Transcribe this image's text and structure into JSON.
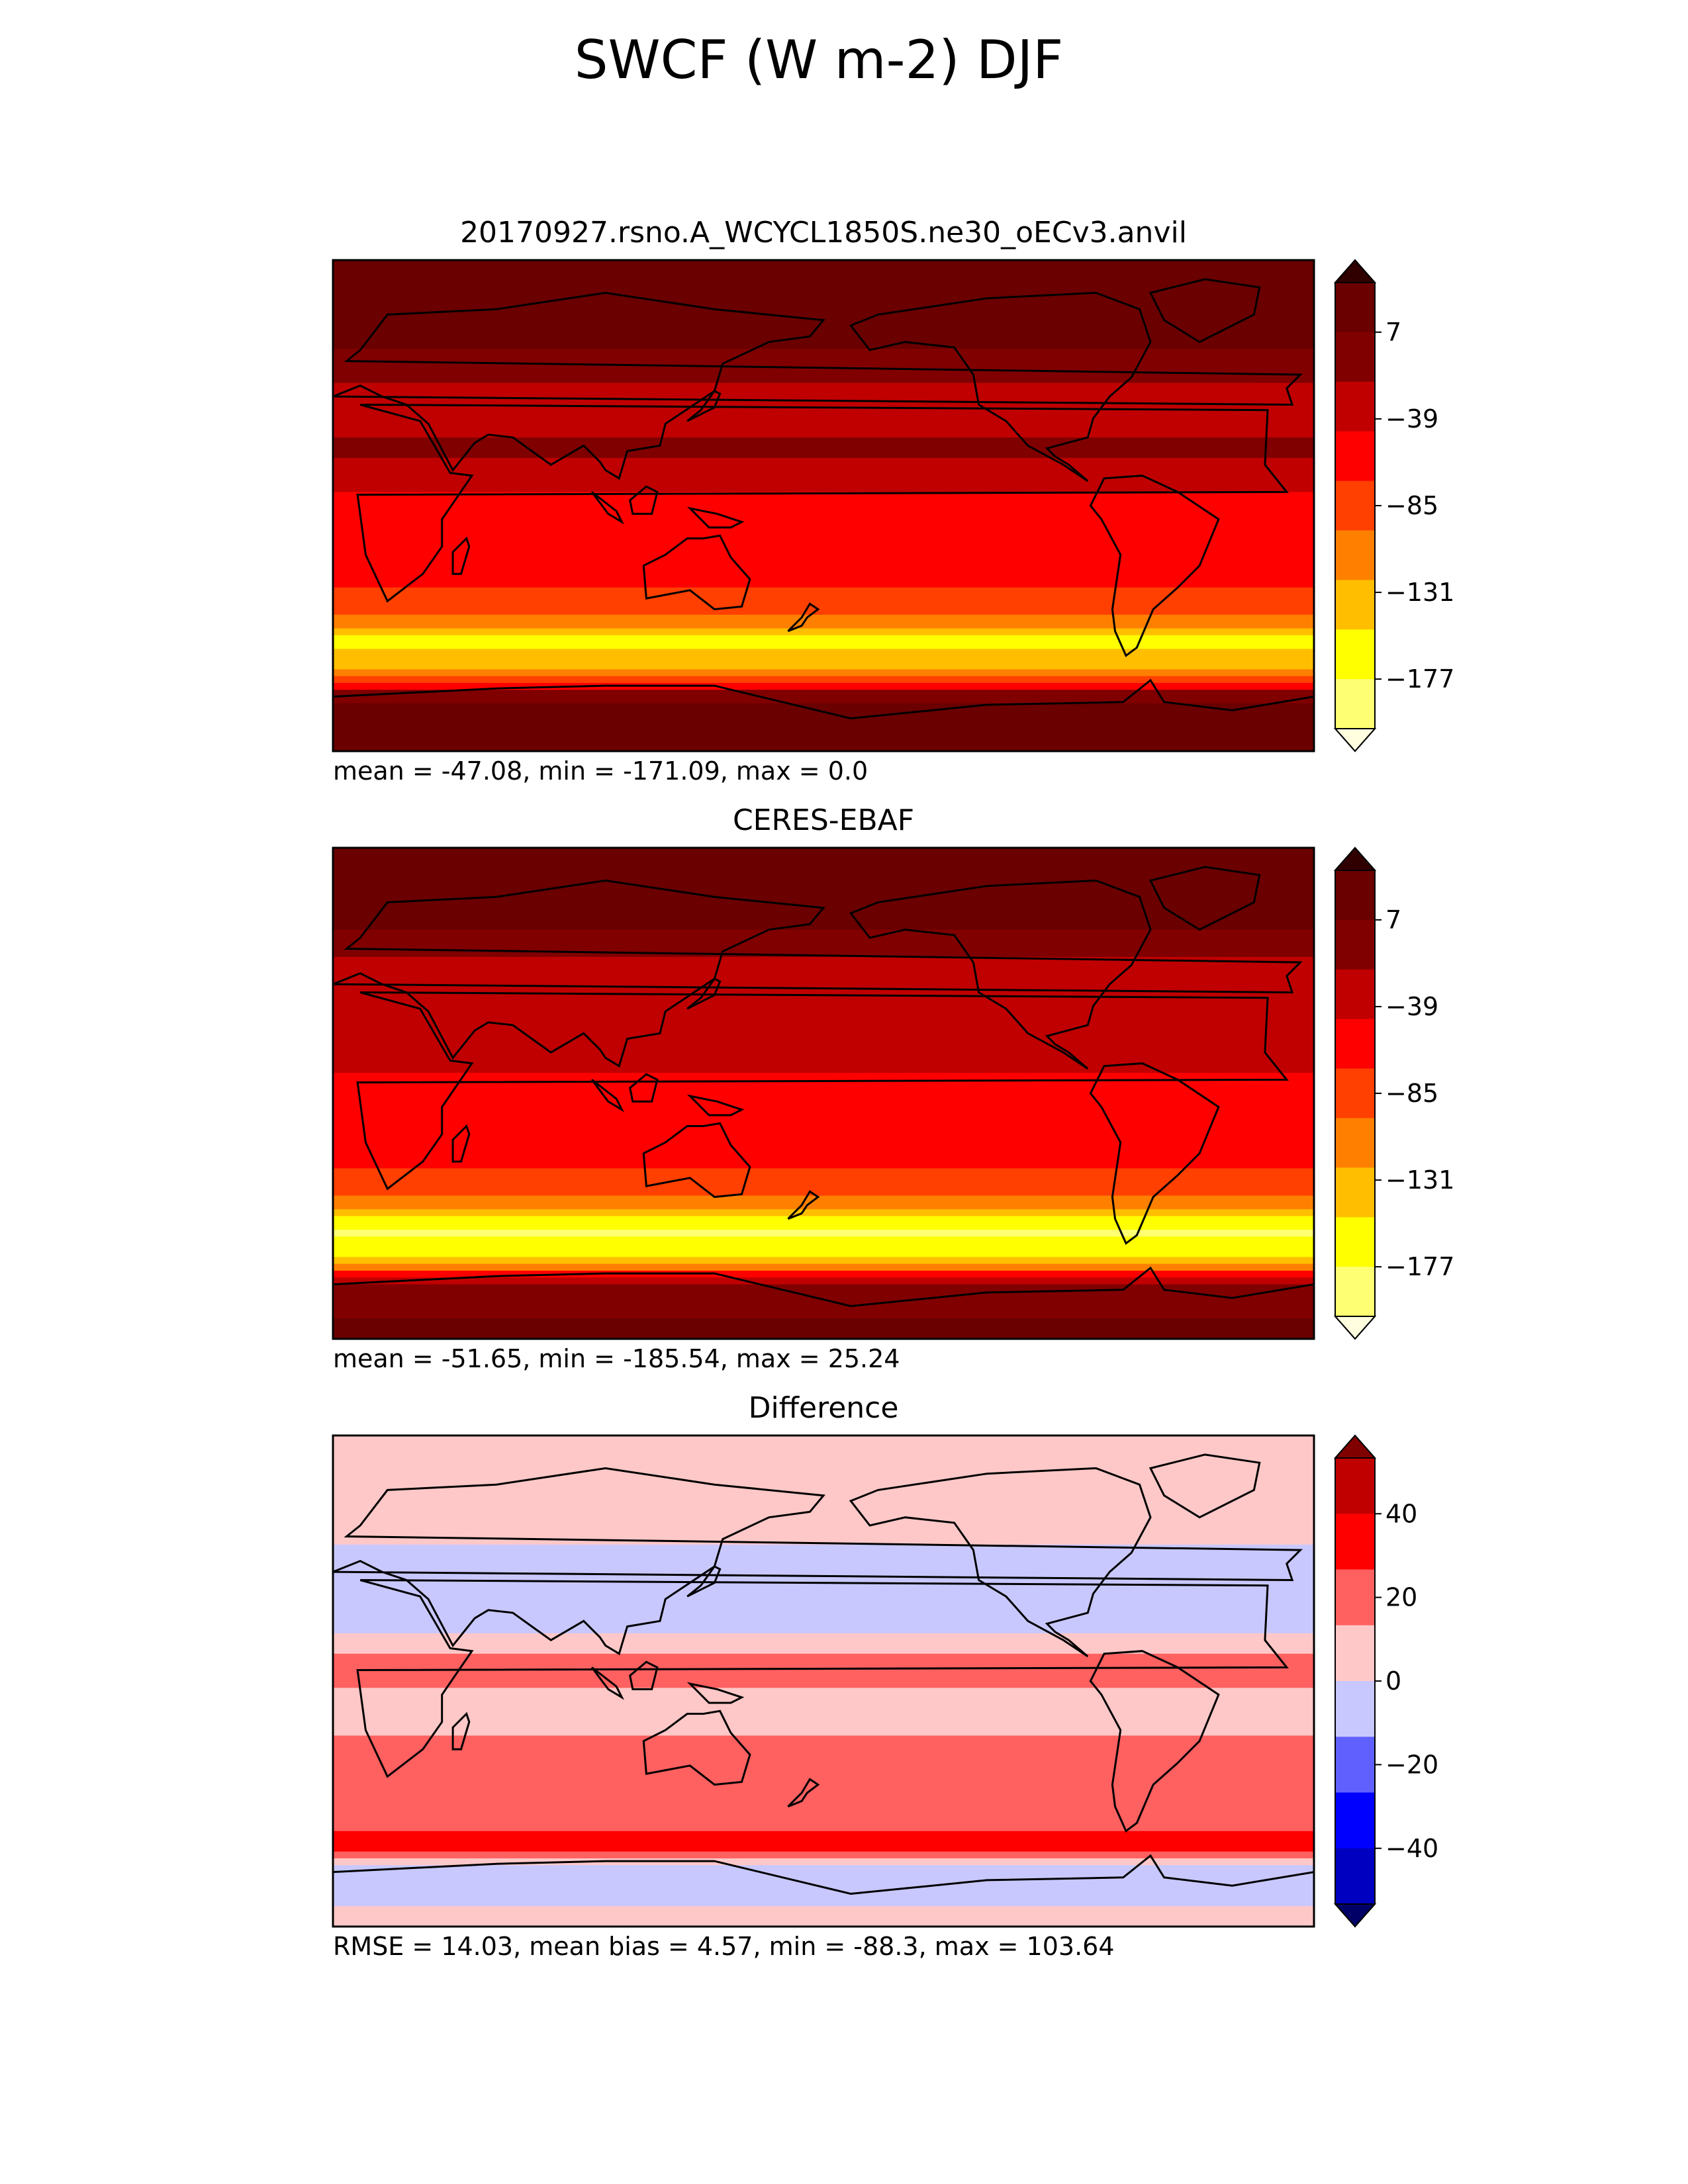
{
  "figure": {
    "title": "SWCF (W m-2) DJF"
  },
  "chart_data": [
    {
      "type": "heatmap",
      "title": "20170927.rsno.A_WCYCL1850S.ne30_oECv3.anvil",
      "stats": "mean = -47.08, min = -171.09, max = 0.0",
      "colorbar": {
        "ticks": [
          7,
          -39,
          -85,
          -131,
          -177
        ],
        "tick_labels": [
          "7",
          "−39",
          "−85",
          "−131",
          "−177"
        ],
        "colors": [
          "#ffffe0",
          "#ffff73",
          "#ffff00",
          "#ffbf00",
          "#ff8000",
          "#ff4000",
          "#ff0000",
          "#c00000",
          "#800000",
          "#6a0000",
          "#300000"
        ],
        "extend": "both"
      },
      "bands": [
        {
          "lat": 90,
          "value": 0
        },
        {
          "lat": 60,
          "value": -8
        },
        {
          "lat": 40,
          "value": -45
        },
        {
          "lat": 20,
          "value": -30
        },
        {
          "lat": 0,
          "value": -60
        },
        {
          "lat": -20,
          "value": -55
        },
        {
          "lat": -40,
          "value": -95
        },
        {
          "lat": -50,
          "value": -145
        },
        {
          "lat": -60,
          "value": -120
        },
        {
          "lat": -70,
          "value": -15
        },
        {
          "lat": -90,
          "value": 0
        }
      ]
    },
    {
      "type": "heatmap",
      "title": "CERES-EBAF",
      "stats": "mean = -51.65, min = -185.54, max = 25.24",
      "colorbar": {
        "ticks": [
          7,
          -39,
          -85,
          -131,
          -177
        ],
        "tick_labels": [
          "7",
          "−39",
          "−85",
          "−131",
          "−177"
        ],
        "colors": [
          "#ffffe0",
          "#ffff73",
          "#ffff00",
          "#ffbf00",
          "#ff8000",
          "#ff4000",
          "#ff0000",
          "#c00000",
          "#800000",
          "#6a0000",
          "#300000"
        ],
        "extend": "both"
      },
      "bands": [
        {
          "lat": 90,
          "value": -5
        },
        {
          "lat": 60,
          "value": -12
        },
        {
          "lat": 40,
          "value": -55
        },
        {
          "lat": 20,
          "value": -40
        },
        {
          "lat": 0,
          "value": -65
        },
        {
          "lat": -20,
          "value": -60
        },
        {
          "lat": -40,
          "value": -100
        },
        {
          "lat": -50,
          "value": -160
        },
        {
          "lat": -60,
          "value": -140
        },
        {
          "lat": -70,
          "value": -30
        },
        {
          "lat": -90,
          "value": -5
        }
      ]
    },
    {
      "type": "heatmap",
      "title": "Difference",
      "stats": "RMSE = 14.03, mean bias = 4.57, min = -88.3, max = 103.64",
      "colorbar": {
        "ticks": [
          40,
          20,
          0,
          -20,
          -40
        ],
        "tick_labels": [
          "40",
          "20",
          "0",
          "−20",
          "−40"
        ],
        "colors": [
          "#000066",
          "#0000c0",
          "#0000ff",
          "#6060ff",
          "#c8c8ff",
          "#ffc8c8",
          "#ff6060",
          "#ff0000",
          "#c00000",
          "#800000"
        ],
        "extend": "both"
      },
      "bands": [
        {
          "lat": 90,
          "value": 3
        },
        {
          "lat": 60,
          "value": 4
        },
        {
          "lat": 40,
          "value": -5
        },
        {
          "lat": 20,
          "value": -5
        },
        {
          "lat": 5,
          "value": 15
        },
        {
          "lat": -10,
          "value": 5
        },
        {
          "lat": -30,
          "value": 15
        },
        {
          "lat": -50,
          "value": 12
        },
        {
          "lat": -60,
          "value": 25
        },
        {
          "lat": -70,
          "value": -5
        },
        {
          "lat": -90,
          "value": 3
        }
      ]
    }
  ]
}
